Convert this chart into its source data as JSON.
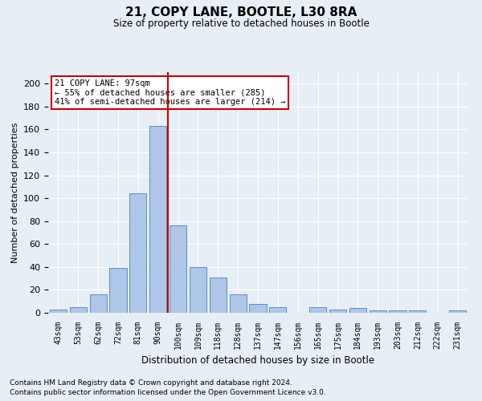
{
  "title1": "21, COPY LANE, BOOTLE, L30 8RA",
  "title2": "Size of property relative to detached houses in Bootle",
  "xlabel": "Distribution of detached houses by size in Bootle",
  "ylabel": "Number of detached properties",
  "footnote1": "Contains HM Land Registry data © Crown copyright and database right 2024.",
  "footnote2": "Contains public sector information licensed under the Open Government Licence v3.0.",
  "categories": [
    "43sqm",
    "53sqm",
    "62sqm",
    "72sqm",
    "81sqm",
    "90sqm",
    "100sqm",
    "109sqm",
    "118sqm",
    "128sqm",
    "137sqm",
    "147sqm",
    "156sqm",
    "165sqm",
    "175sqm",
    "184sqm",
    "193sqm",
    "203sqm",
    "212sqm",
    "222sqm",
    "231sqm"
  ],
  "values": [
    3,
    5,
    16,
    39,
    104,
    163,
    76,
    40,
    31,
    16,
    8,
    5,
    0,
    5,
    3,
    4,
    2,
    2,
    2,
    0,
    2
  ],
  "bar_color": "#aec6e8",
  "bar_edge_color": "#5a8fc2",
  "annotation_line_label": "21 COPY LANE: 97sqm",
  "annotation_text1": "← 55% of detached houses are smaller (285)",
  "annotation_text2": "41% of semi-detached houses are larger (214) →",
  "ylim": [
    0,
    210
  ],
  "yticks": [
    0,
    20,
    40,
    60,
    80,
    100,
    120,
    140,
    160,
    180,
    200
  ],
  "bg_color": "#e8eef5",
  "plot_bg_color": "#e8eef5",
  "annotation_box_color": "#ffffff",
  "annotation_box_edge": "#cc0000",
  "vline_color": "#cc0000",
  "vline_x": 5.5
}
